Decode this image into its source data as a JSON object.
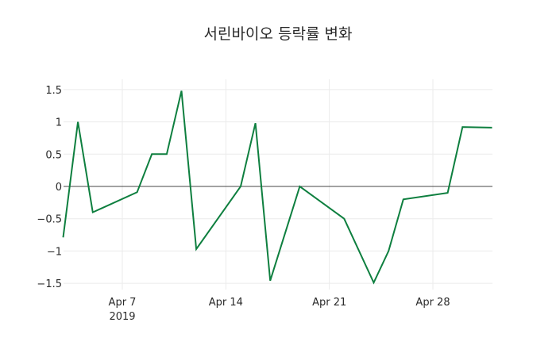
{
  "chart_data": {
    "type": "line",
    "title": "서린바이오 등락률 변화",
    "xlabel": "",
    "ylabel": "",
    "x": [
      "2019-04-03",
      "2019-04-04",
      "2019-04-05",
      "2019-04-08",
      "2019-04-09",
      "2019-04-10",
      "2019-04-11",
      "2019-04-12",
      "2019-04-15",
      "2019-04-16",
      "2019-04-17",
      "2019-04-19",
      "2019-04-22",
      "2019-04-24",
      "2019-04-25",
      "2019-04-26",
      "2019-04-29",
      "2019-04-30",
      "2019-05-02"
    ],
    "series": [
      {
        "name": "등락률",
        "color": "#0e7f3f",
        "values": [
          -0.79,
          1.0,
          -0.4,
          -0.09,
          0.5,
          0.5,
          1.48,
          -0.97,
          0.0,
          0.98,
          -1.46,
          0.0,
          -0.5,
          -1.49,
          -1.0,
          -0.2,
          -0.1,
          0.92,
          0.91
        ]
      }
    ],
    "ylim": [
      -1.55,
      1.65
    ],
    "y_ticks": [
      1.5,
      1,
      0.5,
      0,
      -0.5,
      -1,
      -1.5
    ],
    "y_tick_labels": [
      "1.5",
      "1",
      "0.5",
      "0",
      "−0.5",
      "−1",
      "−1.5"
    ],
    "x_ticks": [
      {
        "date": "2019-04-07",
        "label": "Apr 7",
        "sublabel": "2019"
      },
      {
        "date": "2019-04-14",
        "label": "Apr 14",
        "sublabel": ""
      },
      {
        "date": "2019-04-21",
        "label": "Apr 21",
        "sublabel": ""
      },
      {
        "date": "2019-04-28",
        "label": "Apr 28",
        "sublabel": ""
      }
    ],
    "grid": true,
    "legend": false
  }
}
